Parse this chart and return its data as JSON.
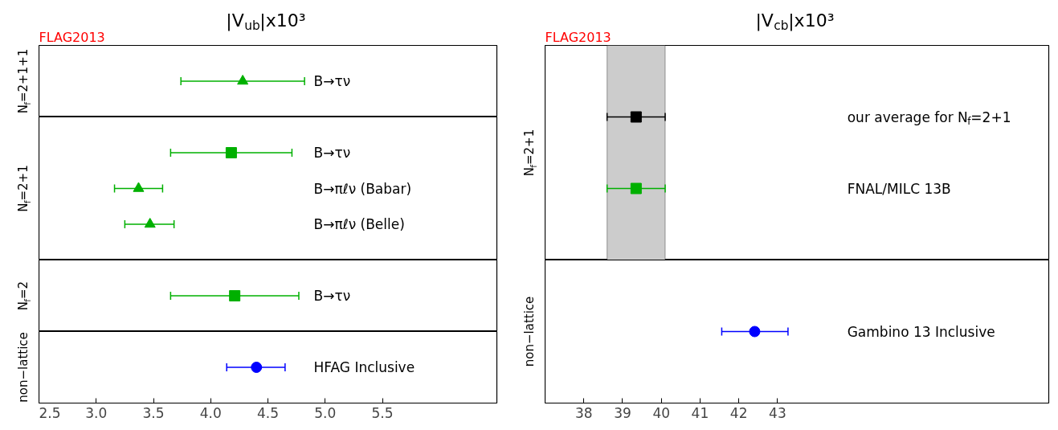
{
  "chart_data": [
    {
      "type": "scatter",
      "orientation": "horizontal",
      "title": "|V$_{ub}$|x10³",
      "annotations": [
        "FLAG2013"
      ],
      "ylabel": "N$_{f}$=2+1+1",
      "categories": [
        "B→τν"
      ],
      "xlim": [
        2.5,
        6.5
      ],
      "xticks": [
        2.5,
        3,
        3.5,
        4,
        4.5,
        5,
        5.5
      ],
      "tick_labels": false,
      "series": [
        {
          "color": "#00b000",
          "marker": "triangle",
          "values": [
            4.28
          ],
          "errors": [
            [
              3.74,
              4.82
            ]
          ]
        }
      ]
    },
    {
      "type": "scatter",
      "orientation": "horizontal",
      "ylabel": "N$_{f}$=2+1",
      "categories": [
        "B→τν",
        "B→πℓν (Babar)",
        "B→πℓν (Belle)"
      ],
      "xlim": [
        2.5,
        6.5
      ],
      "xticks": [
        2.5,
        3,
        3.5,
        4,
        4.5,
        5,
        5.5
      ],
      "tick_labels": false,
      "series": [
        {
          "color": "#00b000",
          "marker": "square",
          "values": [
            4.18,
            null,
            null
          ],
          "errors": [
            [
              3.65,
              4.71
            ],
            null,
            null
          ]
        },
        {
          "color": "#00b000",
          "marker": "triangle",
          "values": [
            null,
            3.37,
            3.47
          ],
          "errors": [
            null,
            [
              3.16,
              3.58
            ],
            [
              3.25,
              3.68
            ]
          ]
        }
      ]
    },
    {
      "type": "scatter",
      "orientation": "horizontal",
      "ylabel": "N$_{f}$=2",
      "categories": [
        "B→τν"
      ],
      "xlim": [
        2.5,
        6.5
      ],
      "xticks": [
        2.5,
        3,
        3.5,
        4,
        4.5,
        5,
        5.5
      ],
      "tick_labels": false,
      "series": [
        {
          "color": "#00b000",
          "marker": "square",
          "values": [
            4.21
          ],
          "errors": [
            [
              3.65,
              4.77
            ]
          ]
        }
      ]
    },
    {
      "type": "scatter",
      "orientation": "horizontal",
      "ylabel": "non−lattice",
      "categories": [
        "HFAG Inclusive"
      ],
      "xlim": [
        2.5,
        6.5
      ],
      "xticks": [
        2.5,
        {
          "value": 3,
          "label": "3.0"
        },
        3.5,
        {
          "value": 4,
          "label": "4.0"
        },
        4.5,
        {
          "value": 5,
          "label": "5.0"
        },
        5.5
      ],
      "tick_labels": "x",
      "series": [
        {
          "color": "#0000ff",
          "marker": "circle",
          "values": [
            4.4
          ],
          "errors": [
            [
              4.14,
              4.65
            ]
          ]
        }
      ]
    },
    {
      "type": "scatter",
      "orientation": "horizontal",
      "title": "|V$_{cb}$|x10³",
      "annotations": [
        "FLAG2013"
      ],
      "ylabel": "N$_{f}$=2+1",
      "categories": [
        "our average for N$_{f}$=2+1",
        "FNAL/MILC 13B"
      ],
      "xlim": [
        37,
        50
      ],
      "xticks": [
        38,
        39,
        40,
        41,
        42,
        43
      ],
      "tick_labels": false,
      "bands": [
        {
          "axis": "x",
          "from": 38.6,
          "to": 40.1,
          "color": "#cccccc"
        }
      ],
      "series": [
        {
          "color": "#000000",
          "marker": "square",
          "values": [
            39.35,
            null
          ],
          "errors": [
            [
              38.6,
              40.1
            ],
            null
          ]
        },
        {
          "color": "#00b000",
          "marker": "square",
          "values": [
            null,
            39.35
          ],
          "errors": [
            null,
            [
              38.6,
              40.1
            ]
          ]
        }
      ]
    },
    {
      "type": "scatter",
      "orientation": "horizontal",
      "ylabel": "non−lattice",
      "categories": [
        "Gambino 13 Inclusive"
      ],
      "xlim": [
        37,
        50
      ],
      "xticks": [
        38,
        39,
        40,
        41,
        42,
        43
      ],
      "tick_labels": "x",
      "series": [
        {
          "color": "#0000ff",
          "marker": "circle",
          "values": [
            42.41
          ],
          "errors": [
            [
              41.56,
              43.27
            ]
          ]
        }
      ]
    }
  ]
}
